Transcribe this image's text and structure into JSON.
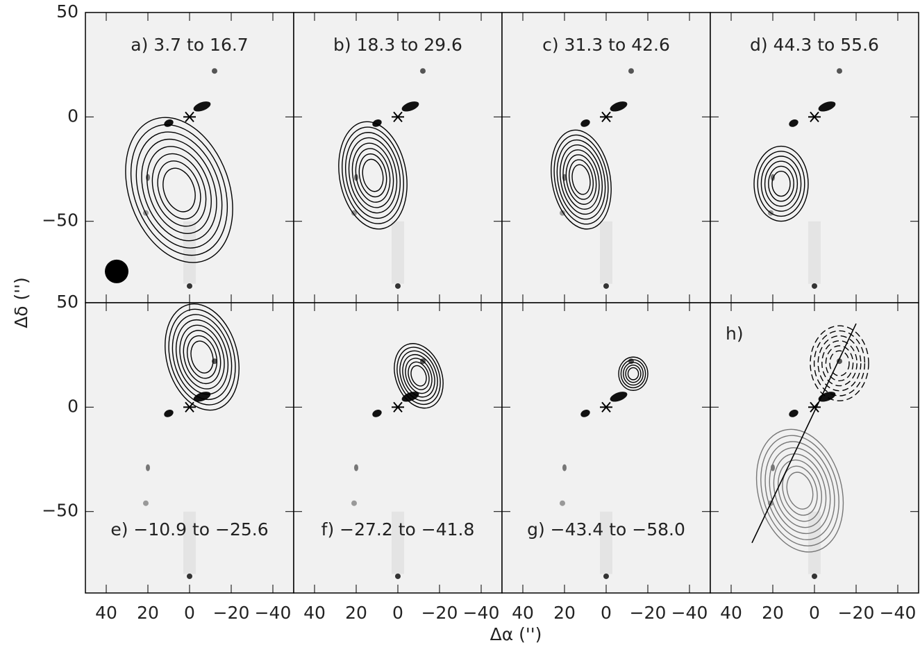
{
  "chart_data": {
    "type": "contour-panels",
    "x_label": "Δα ('')",
    "y_label": "Δδ ('')",
    "xlim": [
      50,
      -50
    ],
    "ylim": [
      -89,
      50
    ],
    "xticks": [
      40,
      20,
      0,
      {
        "value": -20,
        "label": "−20"
      },
      {
        "value": -40,
        "label": "−40"
      }
    ],
    "yticks": [
      50,
      0,
      {
        "value": -50,
        "label": "−50"
      }
    ],
    "panels": [
      {
        "label": "a)  3.7 to 16.7"
      },
      {
        "label": "b) 18.3 to 29.6"
      },
      {
        "label": "c) 31.3 to 42.6"
      },
      {
        "label": "d) 44.3 to 55.6"
      },
      {
        "label": "e) −10.9 to −25.6"
      },
      {
        "label": "f) −27.2 to −41.8"
      },
      {
        "label": "g) −43.4 to −58.0"
      },
      {
        "label": "h)"
      }
    ]
  }
}
